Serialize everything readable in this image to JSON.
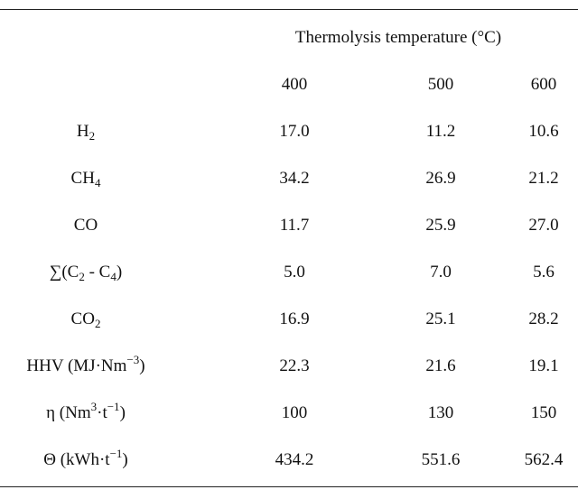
{
  "table": {
    "header": "Thermolysis temperature (°C)",
    "columns": [
      "400",
      "500",
      "600"
    ],
    "rows": [
      {
        "label": {
          "pre": "H",
          "sub": "2",
          "post": ""
        },
        "values": [
          "17.0",
          "11.2",
          "10.6"
        ]
      },
      {
        "label": {
          "pre": "CH",
          "sub": "4",
          "post": ""
        },
        "values": [
          "34.2",
          "26.9",
          "21.2"
        ]
      },
      {
        "label": {
          "pre": "CO",
          "post": ""
        },
        "values": [
          "11.7",
          "25.9",
          "27.0"
        ]
      },
      {
        "label": {
          "pre": "∑(C",
          "sub": "2",
          "mid": " - C",
          "sub2": "4",
          "post": ")"
        },
        "values": [
          "5.0",
          "7.0",
          "5.6"
        ]
      },
      {
        "label": {
          "pre": "CO",
          "sub": "2",
          "post": ""
        },
        "values": [
          "16.9",
          "25.1",
          "28.2"
        ]
      },
      {
        "label": {
          "pre": "HHV (MJ·Nm",
          "sup": "−3",
          "post": ")"
        },
        "values": [
          "22.3",
          "21.6",
          "19.1"
        ]
      },
      {
        "label": {
          "pre": "η (Nm",
          "sup": "3",
          "mid": "·t",
          "sup2": "−1",
          "post": ")"
        },
        "values": [
          "100",
          "130",
          "150"
        ]
      },
      {
        "label": {
          "pre": "Θ (kWh·t",
          "sup": "−1",
          "post": ")"
        },
        "values": [
          "434.2",
          "551.6",
          "562.4"
        ]
      }
    ]
  }
}
